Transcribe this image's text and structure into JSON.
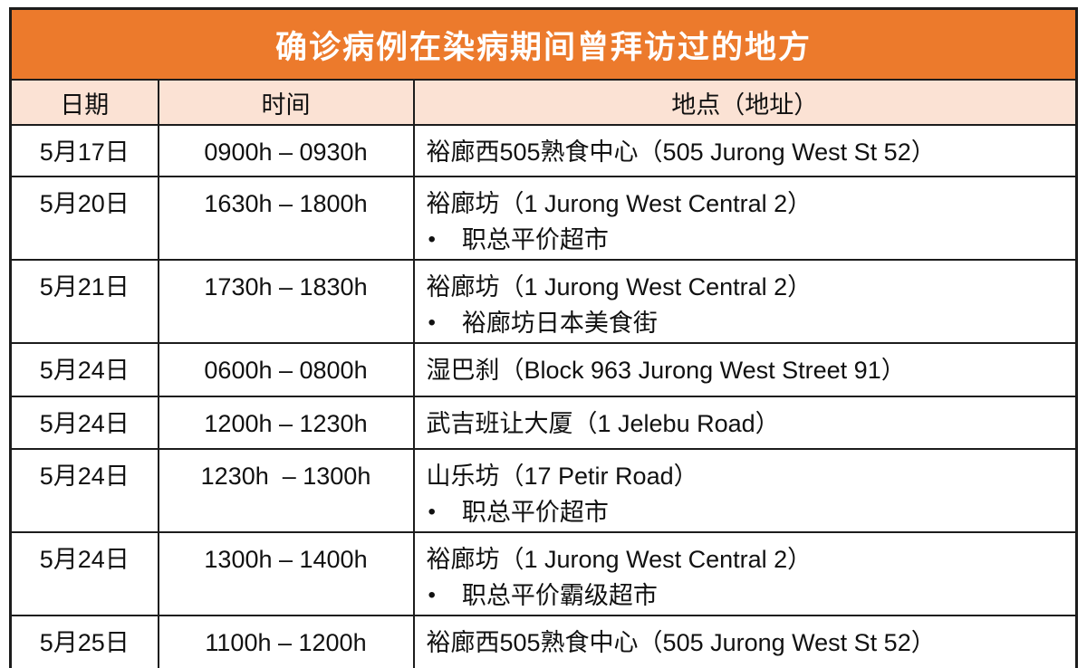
{
  "title": "确诊病例在染病期间曾拜访过的地方",
  "bullet": "•",
  "columns": [
    "日期",
    "时间",
    "地点（地址）"
  ],
  "rows": [
    {
      "date": "5月17日",
      "time": "0900h – 0930h",
      "location": "裕廊西505熟食中心（505 Jurong West St 52）"
    },
    {
      "date": "5月20日",
      "time": "1630h – 1800h",
      "location": "裕廊坊（1 Jurong West Central 2）",
      "sub": "职总平价超市"
    },
    {
      "date": "5月21日",
      "time": "1730h – 1830h",
      "location": "裕廊坊（1 Jurong West Central 2）",
      "sub": "裕廊坊日本美食街"
    },
    {
      "date": "5月24日",
      "time": "0600h – 0800h",
      "location": "湿巴刹（Block 963 Jurong West Street 91）"
    },
    {
      "date": "5月24日",
      "time": "1200h – 1230h",
      "location": "武吉班让大厦（1 Jelebu Road）"
    },
    {
      "date": "5月24日",
      "time": "1230h  – 1300h",
      "location": "山乐坊（17 Petir Road）",
      "sub": "职总平价超市"
    },
    {
      "date": "5月24日",
      "time": "1300h – 1400h",
      "location": "裕廊坊（1 Jurong West Central 2）",
      "sub": "职总平价霸级超市"
    },
    {
      "date": "5月25日",
      "time": "1100h – 1200h",
      "location": "裕廊西505熟食中心（505 Jurong West St 52）"
    }
  ],
  "colors": {
    "title_bg": "#EC7A2C",
    "subheader_bg": "#FBE2D4",
    "border": "#1C1C1C",
    "title_text": "#FFFFFF",
    "body_text": "#111111"
  }
}
